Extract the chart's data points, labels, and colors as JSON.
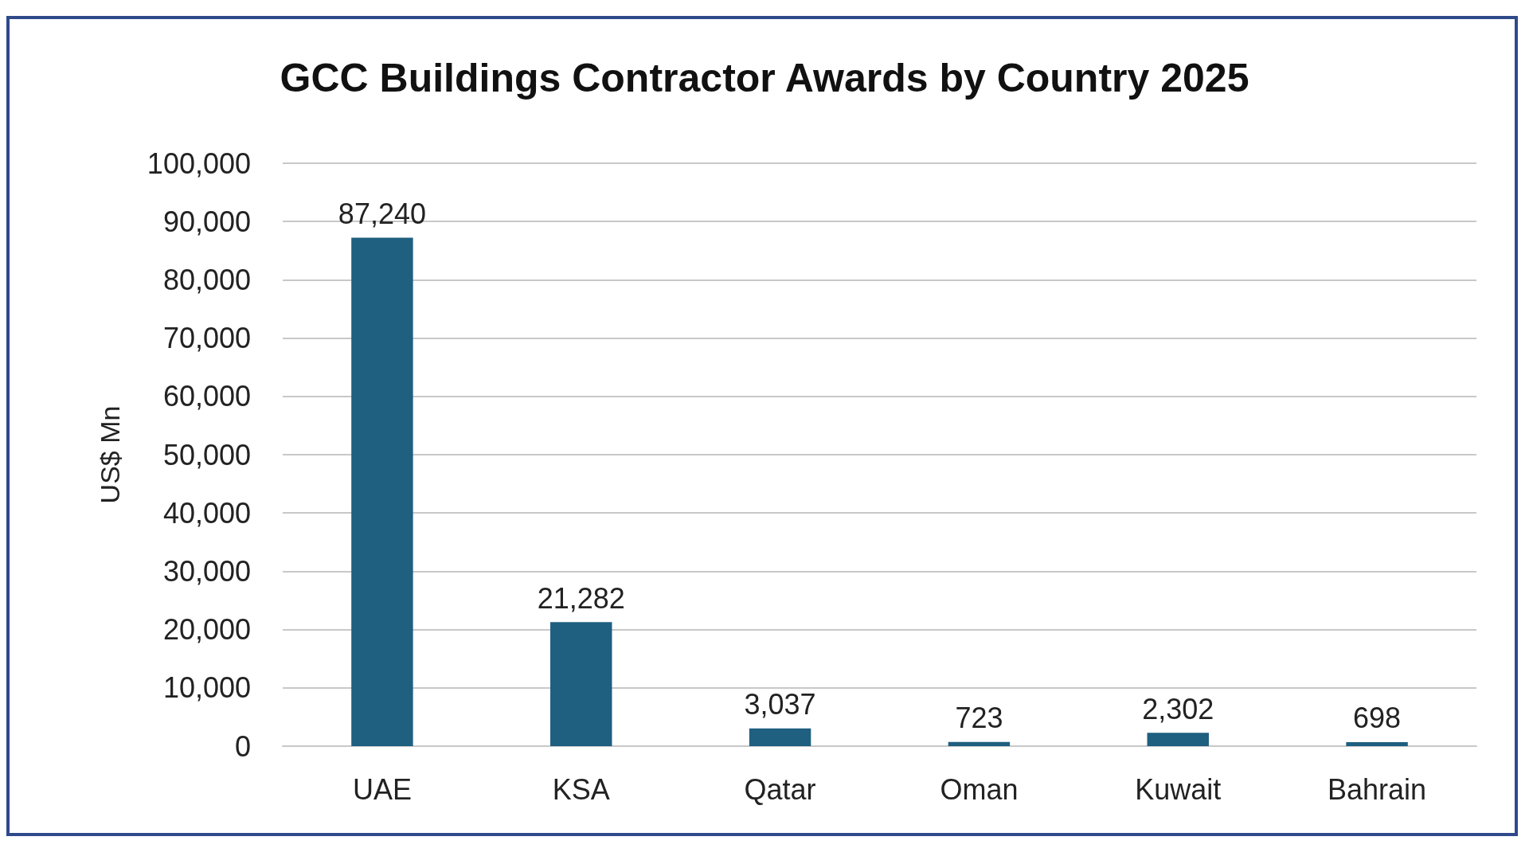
{
  "chart_data": {
    "type": "bar",
    "title": "GCC Buildings Contractor Awards by Country 2025",
    "ylabel": "US$ Mn",
    "categories": [
      "UAE",
      "KSA",
      "Qatar",
      "Oman",
      "Kuwait",
      "Bahrain"
    ],
    "values": [
      87240,
      21282,
      3037,
      723,
      2302,
      698
    ],
    "color": "#1f5f80",
    "value_labels": [
      "87,240",
      "21,282",
      "3,037",
      "723",
      "2,302",
      "698"
    ],
    "ylim": [
      0,
      100000
    ],
    "yticks": [
      0,
      {
        "value": 10000,
        "label": "10,000"
      },
      {
        "value": 20000,
        "label": "20,000"
      },
      {
        "value": 30000,
        "label": "30,000"
      },
      {
        "value": 40000,
        "label": "40,000"
      },
      {
        "value": 50000,
        "label": "50,000"
      },
      {
        "value": 60000,
        "label": "60,000"
      },
      {
        "value": 70000,
        "label": "70,000"
      },
      {
        "value": 80000,
        "label": "80,000"
      },
      {
        "value": 90000,
        "label": "90,000"
      },
      {
        "value": 100000,
        "label": "100,000"
      }
    ],
    "grid": "y"
  }
}
